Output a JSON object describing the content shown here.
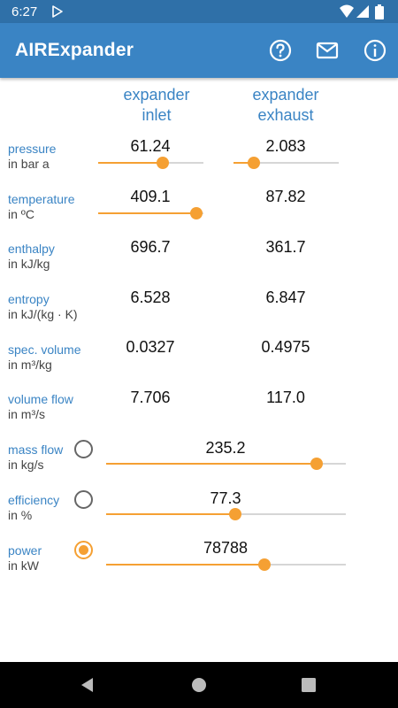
{
  "status": {
    "time": "6:27"
  },
  "app": {
    "title": "AIRExpander"
  },
  "columns": {
    "inlet": "expander\ninlet",
    "exhaust": "expander\nexhaust"
  },
  "rows": {
    "pressure": {
      "name": "pressure",
      "unit": "in bar a",
      "inlet": "61.24",
      "exhaust": "2.083"
    },
    "temperature": {
      "name": "temperature",
      "unit": "in ºC",
      "inlet": "409.1",
      "exhaust": "87.82"
    },
    "enthalpy": {
      "name": "enthalpy",
      "unit": "in kJ/kg",
      "inlet": "696.7",
      "exhaust": "361.7"
    },
    "entropy": {
      "name": "entropy",
      "unit": "in kJ/(kg · K)",
      "inlet": "6.528",
      "exhaust": "6.847"
    },
    "specvol": {
      "name": "spec. volume",
      "unit": "in m³/kg",
      "inlet": "0.0327",
      "exhaust": "0.4975"
    },
    "volflow": {
      "name": "volume flow",
      "unit": "in m³/s",
      "inlet": "7.706",
      "exhaust": "117.0"
    }
  },
  "controls": {
    "massflow": {
      "name": "mass flow",
      "unit": "in kg/s",
      "value": "235.2",
      "selected": false
    },
    "efficiency": {
      "name": "efficiency",
      "unit": "in %",
      "value": "77.3",
      "selected": false
    },
    "power": {
      "name": "power",
      "unit": "in kW",
      "value": "78788",
      "selected": true
    }
  },
  "slider_levels": {
    "pressure_inlet": 0.61,
    "pressure_exhaust": 0.19,
    "temperature_inlet": 0.93,
    "massflow": 0.88,
    "efficiency": 0.54,
    "power": 0.66
  },
  "colors": {
    "statusbar": "#2f70a8",
    "appbar": "#3a84c4",
    "accent": "#f5a033",
    "label": "#3a84c4"
  },
  "icons": {
    "help": "help-icon",
    "mail": "mail-icon",
    "info": "info-icon"
  }
}
